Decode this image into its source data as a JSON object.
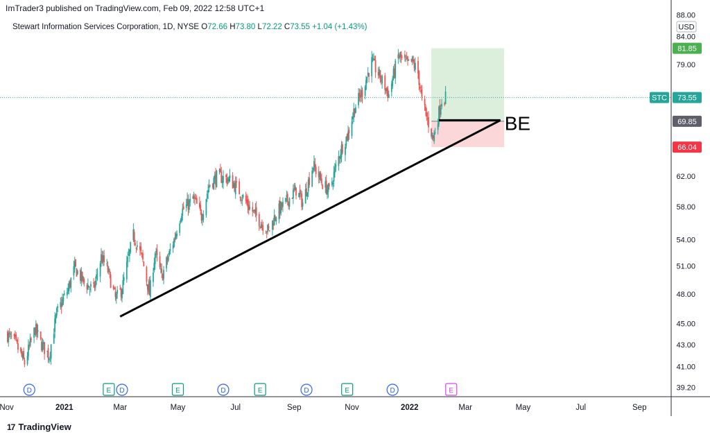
{
  "header": {
    "published": "ImTrader3 published on TradingView.com, Feb 09, 2022 12:58 UTC+1"
  },
  "symbol_line": {
    "name": "Stewart Information Services Corporation, 1D, NYSE",
    "o_label": "O",
    "o": "72.66",
    "h_label": "H",
    "h": "73.80",
    "l_label": "L",
    "l": "72.22",
    "c_label": "C",
    "c": "73.55",
    "change": "+1.04 (+1.43%)"
  },
  "footer": {
    "brand": "TradingView"
  },
  "chart_data": {
    "type": "candlestick",
    "currency": "USD",
    "y_scale": "log",
    "ylim": [
      38.4,
      88.2
    ],
    "y_ticks": [
      39.2,
      41.0,
      43.0,
      45.0,
      48.0,
      51.0,
      54.0,
      58.0,
      62.0,
      66.04,
      69.85,
      73.55,
      79.0,
      84.0,
      88.0
    ],
    "x_ticks": [
      "Nov",
      "2021",
      "Mar",
      "May",
      "Jul",
      "Sep",
      "Nov",
      "2022",
      "Mar",
      "May",
      "Jul",
      "Sep"
    ],
    "x_tick_bold": [
      "2021",
      "2022"
    ],
    "price_labels": [
      {
        "text": "81.85",
        "value": 81.85,
        "color": "#4caf50"
      },
      {
        "text": "73.55",
        "value": 73.55,
        "color": "#26a69a",
        "tag": "STC"
      },
      {
        "text": "69.85",
        "value": 69.85,
        "color": "#5d606b"
      },
      {
        "text": "66.04",
        "value": 66.04,
        "color": "#f23645"
      }
    ],
    "last_price": 73.55,
    "trade_box": {
      "entry": 69.85,
      "target": 81.85,
      "stop": 66.04,
      "start_date": "2022-01-24",
      "end_date": "2022-04-11"
    },
    "trendline": [
      {
        "date": "2021-03-01",
        "price": 45.7
      },
      {
        "date": "2022-04-07",
        "price": 70.0
      }
    ],
    "be_line": {
      "price": 70.0,
      "start_date": "2022-02-01",
      "end_date": "2022-04-07"
    },
    "annotation": "BE",
    "events": [
      {
        "date": "2020-11-25",
        "label": "D",
        "kind": "dividend"
      },
      {
        "date": "2021-02-17",
        "label": "E",
        "kind": "earnings"
      },
      {
        "date": "2021-03-03",
        "label": "D",
        "kind": "dividend"
      },
      {
        "date": "2021-05-01",
        "label": "E",
        "kind": "earnings"
      },
      {
        "date": "2021-06-18",
        "label": "D",
        "kind": "dividend"
      },
      {
        "date": "2021-07-27",
        "label": "E",
        "kind": "earnings"
      },
      {
        "date": "2021-09-14",
        "label": "D",
        "kind": "dividend"
      },
      {
        "date": "2021-10-27",
        "label": "E",
        "kind": "earnings"
      },
      {
        "date": "2021-12-14",
        "label": "D",
        "kind": "dividend"
      },
      {
        "date": "2022-02-14",
        "label": "E",
        "kind": "earnings-upcoming"
      }
    ],
    "price_path": [
      [
        "2020-11-01",
        44.0
      ],
      [
        "2020-11-10",
        43.2
      ],
      [
        "2020-11-20",
        41.3
      ],
      [
        "2020-12-01",
        44.5
      ],
      [
        "2020-12-08",
        43.0
      ],
      [
        "2020-12-16",
        42.0
      ],
      [
        "2020-12-24",
        46.0
      ],
      [
        "2021-01-05",
        48.5
      ],
      [
        "2021-01-12",
        50.8
      ],
      [
        "2021-01-22",
        49.2
      ],
      [
        "2021-02-01",
        48.4
      ],
      [
        "2021-02-09",
        52.0
      ],
      [
        "2021-02-16",
        50.5
      ],
      [
        "2021-02-24",
        47.5
      ],
      [
        "2021-03-03",
        48.5
      ],
      [
        "2021-03-15",
        54.5
      ],
      [
        "2021-03-24",
        52.0
      ],
      [
        "2021-04-01",
        48.0
      ],
      [
        "2021-04-07",
        52.5
      ],
      [
        "2021-04-14",
        49.8
      ],
      [
        "2021-04-27",
        54.0
      ],
      [
        "2021-05-05",
        57.5
      ],
      [
        "2021-05-18",
        59.0
      ],
      [
        "2021-05-26",
        56.8
      ],
      [
        "2021-06-03",
        60.8
      ],
      [
        "2021-06-12",
        62.0
      ],
      [
        "2021-06-25",
        61.5
      ],
      [
        "2021-07-05",
        60.0
      ],
      [
        "2021-07-14",
        58.2
      ],
      [
        "2021-07-27",
        56.2
      ],
      [
        "2021-08-05",
        55.0
      ],
      [
        "2021-08-13",
        57.2
      ],
      [
        "2021-08-25",
        58.8
      ],
      [
        "2021-09-03",
        60.2
      ],
      [
        "2021-09-10",
        58.5
      ],
      [
        "2021-09-21",
        63.5
      ],
      [
        "2021-10-01",
        61.0
      ],
      [
        "2021-10-08",
        60.0
      ],
      [
        "2021-10-20",
        65.5
      ],
      [
        "2021-10-28",
        68.0
      ],
      [
        "2021-11-04",
        72.0
      ],
      [
        "2021-11-12",
        74.5
      ],
      [
        "2021-11-22",
        79.5
      ],
      [
        "2021-12-02",
        76.5
      ],
      [
        "2021-12-10",
        74.0
      ],
      [
        "2021-12-20",
        80.5
      ],
      [
        "2021-12-30",
        79.0
      ],
      [
        "2022-01-04",
        79.5
      ],
      [
        "2022-01-10",
        77.5
      ],
      [
        "2022-01-14",
        73.0
      ],
      [
        "2022-01-20",
        70.0
      ],
      [
        "2022-01-26",
        67.3
      ],
      [
        "2022-01-31",
        70.5
      ],
      [
        "2022-02-04",
        73.2
      ],
      [
        "2022-02-08",
        73.55
      ]
    ]
  }
}
